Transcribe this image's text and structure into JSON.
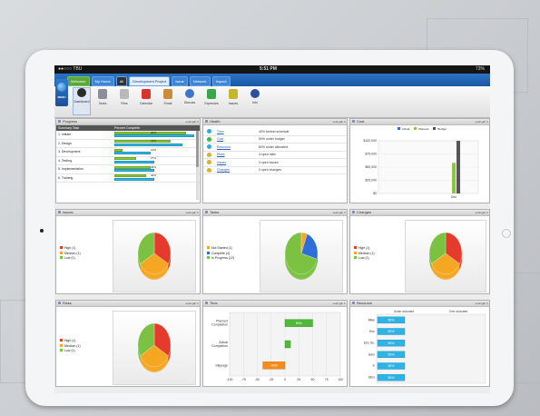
{
  "status_bar": {
    "carrier": "●●○○○ TBU",
    "time": "5:51 PM",
    "battery": "73%"
  },
  "top_tabs": [
    {
      "label": "Welcome",
      "style": "green"
    },
    {
      "label": "My Home",
      "style": "blue"
    },
    {
      "label": "All",
      "style": "dark"
    },
    {
      "label": "Development Project",
      "style": "active"
    },
    {
      "label": "Issue",
      "style": "blue"
    },
    {
      "label": "Network",
      "style": "blue"
    },
    {
      "label": "Impact",
      "style": "blue"
    }
  ],
  "logo_text": "MENU",
  "toolbar": [
    {
      "label": "Dashboard",
      "icon": "dashboard-icon",
      "color": "#2b2b2b",
      "selected": true
    },
    {
      "label": "Tasks",
      "icon": "tasks-icon",
      "color": "#8a8f99"
    },
    {
      "label": "Files",
      "icon": "files-icon",
      "color": "#b9b9b9"
    },
    {
      "label": "Calendar",
      "icon": "calendar-icon",
      "color": "#d9342b"
    },
    {
      "label": "Email",
      "icon": "email-icon",
      "color": "#c98c3a"
    },
    {
      "label": "Discuss",
      "icon": "discuss-icon",
      "color": "#3f74c9"
    },
    {
      "label": "Expenses",
      "icon": "expenses-icon",
      "color": "#3aa84a"
    },
    {
      "label": "Issues",
      "icon": "issues-icon",
      "color": "#c7b62b"
    },
    {
      "label": "Info",
      "icon": "info-icon",
      "color": "#2c4f9e"
    }
  ],
  "panel_options_label": "settings",
  "progress": {
    "title": "Progress",
    "columns": [
      "Summary Task",
      "Percent Complete"
    ],
    "rows": [
      {
        "name": "1. Initiate",
        "green_label": "90%",
        "green": 0.9,
        "cyan": 1.0
      },
      {
        "name": "2. Design",
        "green_label": "70%",
        "green": 0.7,
        "cyan": 0.85
      },
      {
        "name": "3. Development",
        "green_label": "10%",
        "green": 0.1,
        "cyan": 0.45
      },
      {
        "name": "4. Testing",
        "green_label": "27%",
        "green": 0.27,
        "cyan": 0.5
      },
      {
        "name": "5. Implementation",
        "green_label": "45%",
        "green": 0.45,
        "cyan": 0.5
      },
      {
        "name": "6. Training",
        "green_label": "40%",
        "green": 0.4,
        "cyan": 0.5
      }
    ]
  },
  "health": {
    "title": "Health",
    "rows": [
      {
        "area": "Time",
        "desc": "40% behind schedule",
        "color": "#2fa8e0"
      },
      {
        "area": "Cost",
        "desc": "50% under budget",
        "color": "#44b54a"
      },
      {
        "area": "Resource",
        "desc": "80% under allocated",
        "color": "#2fa8e0"
      },
      {
        "area": "Risks",
        "desc": "3 open risks",
        "color": "#d9b22b"
      },
      {
        "area": "Issues",
        "desc": "3 open issues",
        "color": "#d9b22b"
      },
      {
        "area": "Changes",
        "desc": "3 open changes",
        "color": "#d9b22b"
      }
    ]
  },
  "cost": {
    "title": "Cost",
    "legend": [
      {
        "label": "Actual",
        "color": "#2d6fd6"
      },
      {
        "label": "Planned",
        "color": "#8cc63f"
      },
      {
        "label": "Budget",
        "color": "#555555"
      }
    ],
    "chart_data": {
      "type": "bar",
      "categories": [
        "Dec"
      ],
      "series": [
        {
          "name": "Actual",
          "values": [
            0
          ]
        },
        {
          "name": "Planned",
          "values": [
            58000
          ]
        },
        {
          "name": "Budget",
          "values": [
            100000
          ]
        }
      ],
      "yticks": [
        "$100,000",
        "$75,000",
        "$50,000",
        "$25,000",
        "$0"
      ],
      "ylim": [
        0,
        100000
      ]
    }
  },
  "issues": {
    "title": "Issues",
    "legend": [
      {
        "label": "High (1)",
        "color": "#e53b2c"
      },
      {
        "label": "Medium (1)",
        "color": "#f5a623"
      },
      {
        "label": "Low (1)",
        "color": "#7cc242"
      }
    ],
    "chart_data": {
      "type": "pie",
      "labels": [
        "High",
        "Medium",
        "Low"
      ],
      "values": [
        1,
        1,
        1
      ]
    }
  },
  "tasks": {
    "title": "Tasks",
    "legend": [
      {
        "label": "Not Started (1)",
        "color": "#f5a623"
      },
      {
        "label": "Complete (4)",
        "color": "#2d6fd6"
      },
      {
        "label": "In Progress (12)",
        "color": "#7cc242"
      }
    ],
    "chart_data": {
      "type": "pie",
      "labels": [
        "Not Started",
        "Complete",
        "In Progress"
      ],
      "values": [
        1,
        4,
        12
      ]
    }
  },
  "changes": {
    "title": "Changes",
    "legend": [
      {
        "label": "High (1)",
        "color": "#e53b2c"
      },
      {
        "label": "Medium (1)",
        "color": "#f5a623"
      },
      {
        "label": "Low (1)",
        "color": "#7cc242"
      }
    ],
    "chart_data": {
      "type": "pie",
      "labels": [
        "High",
        "Medium",
        "Low"
      ],
      "values": [
        1,
        1,
        1
      ]
    }
  },
  "risks": {
    "title": "Risks",
    "legend": [
      {
        "label": "High (1)",
        "color": "#e53b2c"
      },
      {
        "label": "Medium (1)",
        "color": "#f5a623"
      },
      {
        "label": "Low (1)",
        "color": "#7cc242"
      }
    ],
    "chart_data": {
      "type": "pie",
      "labels": [
        "High",
        "Medium",
        "Low"
      ],
      "values": [
        1,
        1,
        1
      ]
    }
  },
  "time": {
    "title": "Time",
    "chart_data": {
      "type": "bar",
      "orientation": "horizontal",
      "categories": [
        "Planned Completion",
        "Actual Completion",
        "Slippage"
      ],
      "values": [
        50,
        10,
        -40
      ],
      "labels": [
        "50%",
        "",
        "-40%"
      ],
      "xticks": [
        "-100",
        "-75",
        "-50",
        "-25",
        "0",
        "25",
        "50",
        "75",
        "100"
      ],
      "xlim": [
        -100,
        100
      ]
    }
  },
  "resource": {
    "title": "Resource",
    "col_labels": [
      "Under allocated",
      "Over allocated"
    ],
    "chart_data": {
      "type": "bar",
      "orientation": "horizontal",
      "categories": [
        "Mike",
        "Eric",
        "Eric Sc.",
        "Sam",
        "P",
        "SEG"
      ],
      "values": [
        50,
        50,
        50,
        50,
        50,
        50
      ],
      "labels": [
        "50%",
        "50%",
        "50%",
        "50%",
        "50%",
        "50%"
      ]
    }
  }
}
